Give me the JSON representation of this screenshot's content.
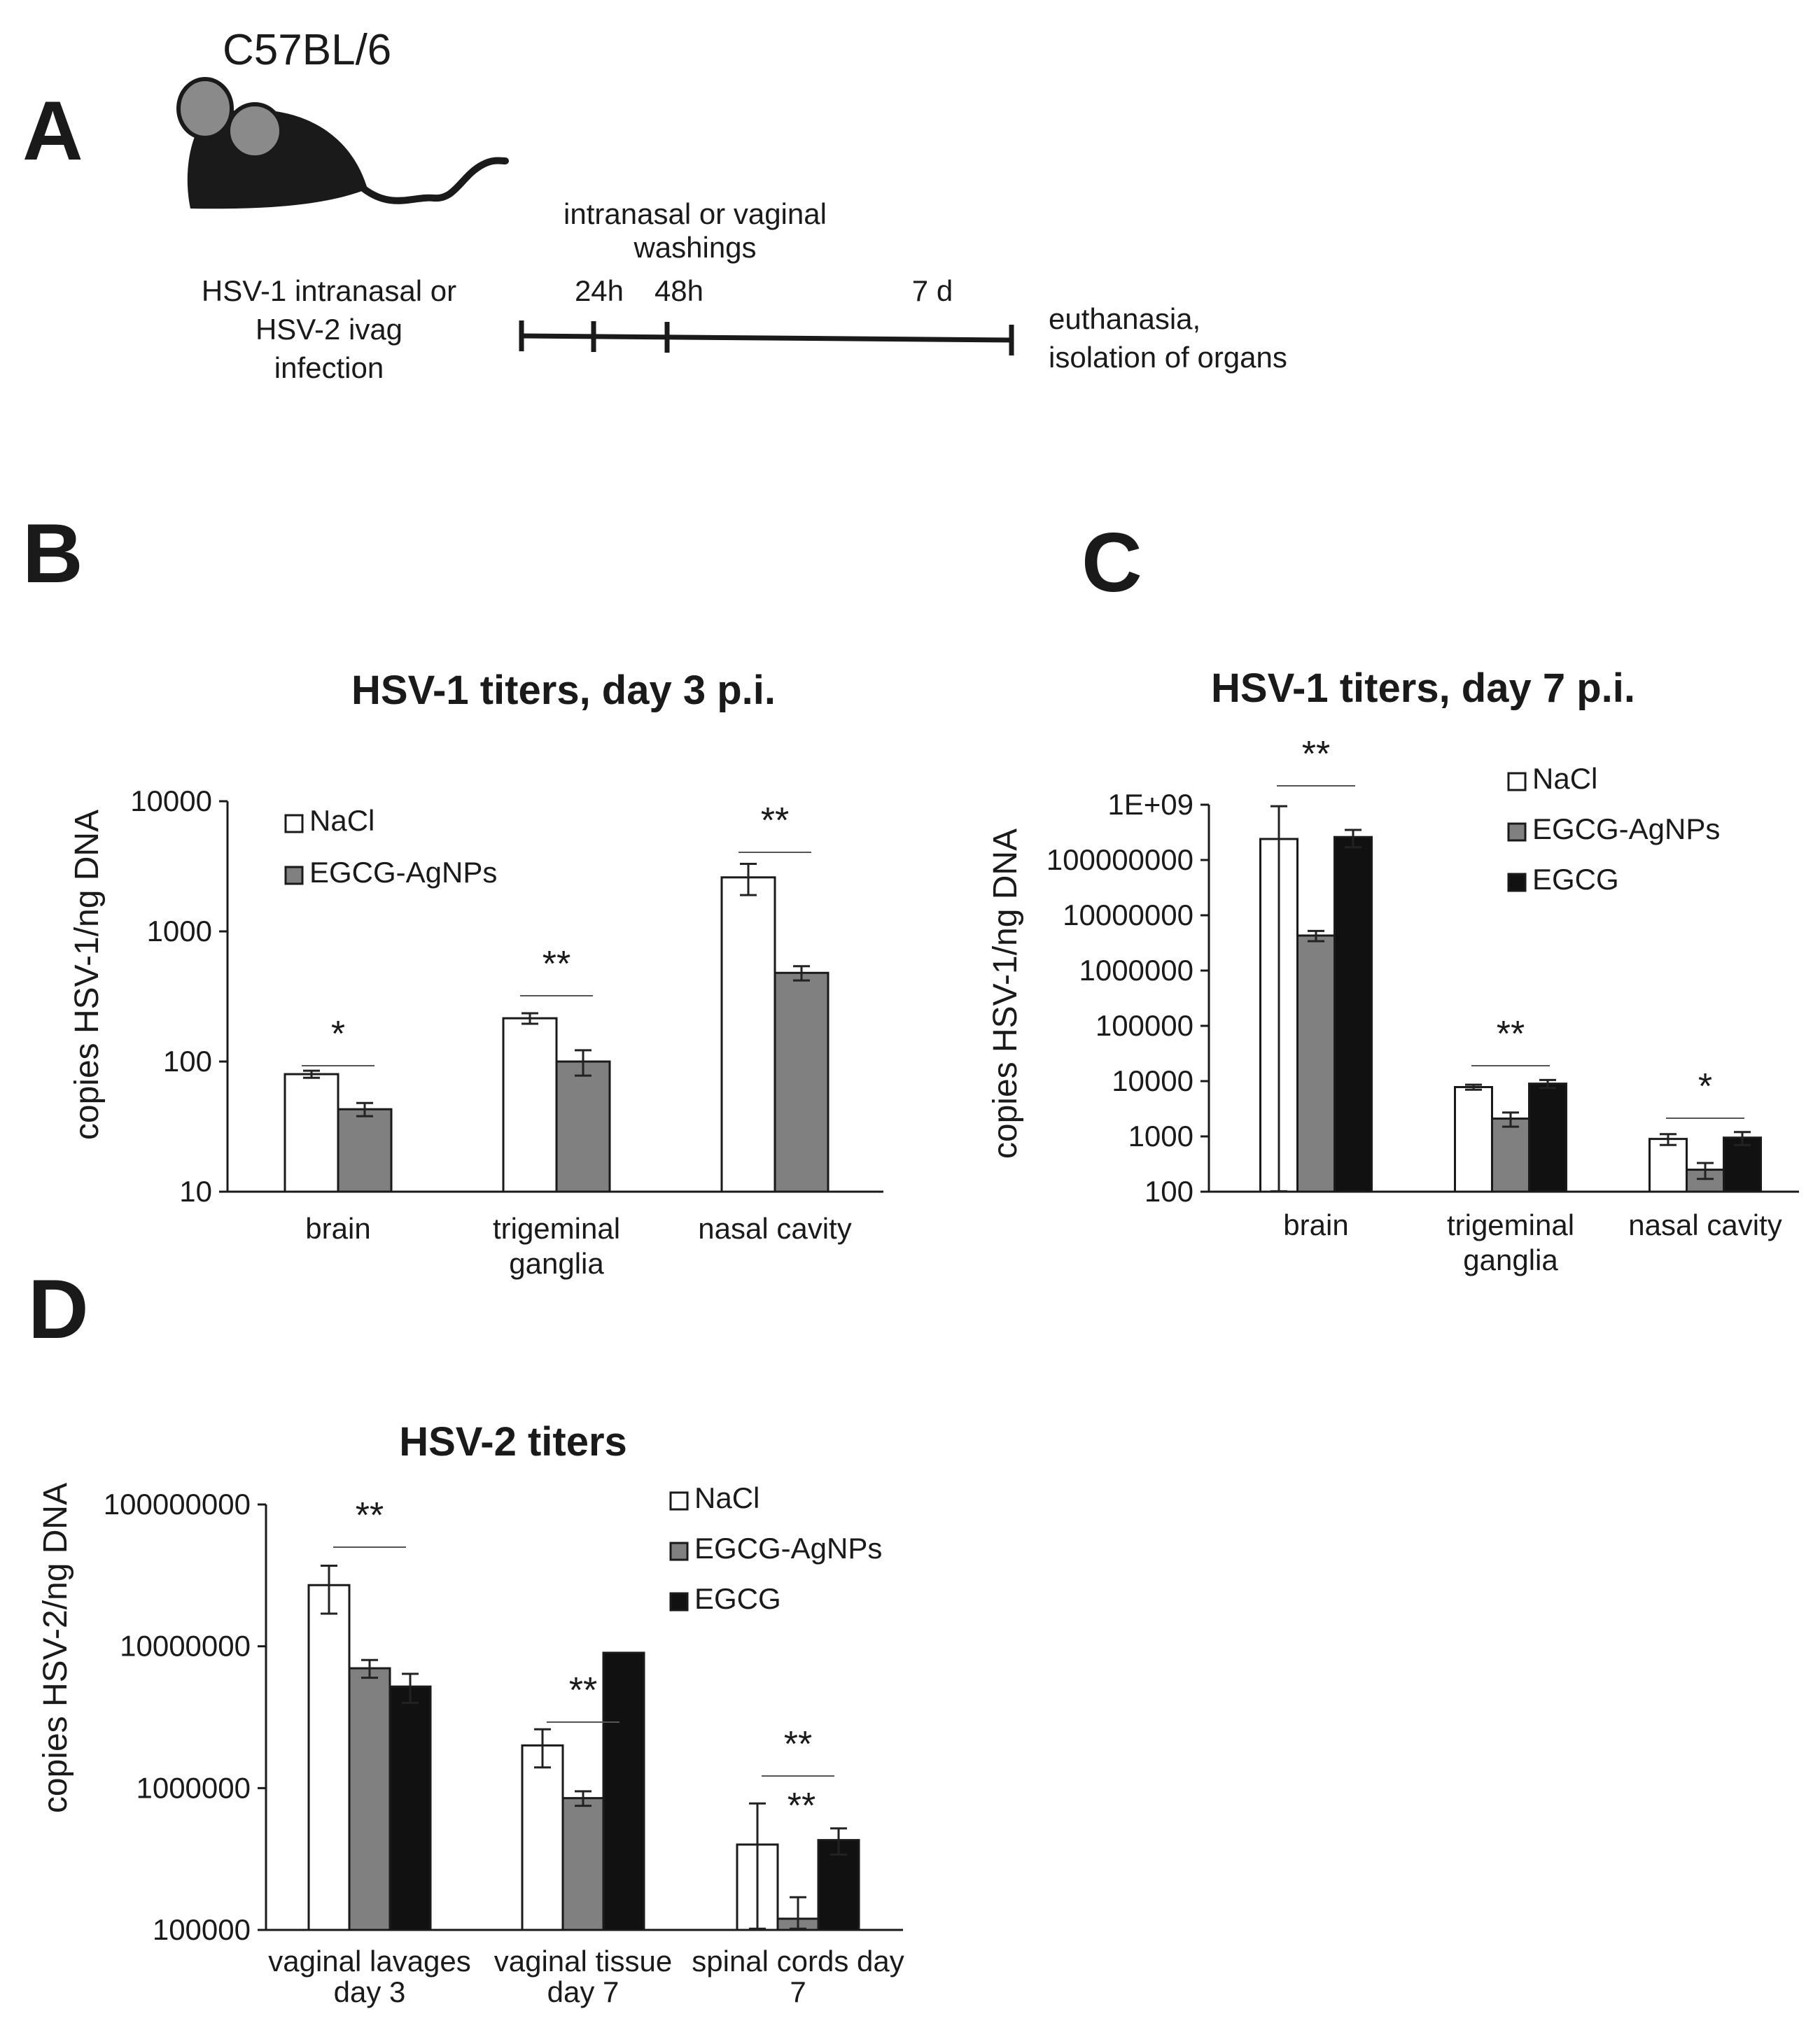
{
  "panel_a": {
    "letter": "A",
    "strain": "C57BL/6",
    "infection_lines": [
      "HSV-1 intranasal or",
      "HSV-2 ivag",
      "infection"
    ],
    "washings_lines": [
      "intranasal or vaginal",
      "washings"
    ],
    "time_labels": [
      "24h",
      "48h",
      "7 d"
    ],
    "end_lines": [
      "euthanasia,",
      "isolation of organs"
    ]
  },
  "panel_letters": {
    "b": "B",
    "c": "C",
    "d": "D"
  },
  "colors": {
    "NaCl": "#ffffff",
    "EGCG-AgNPs": "#808080",
    "EGCG": "#111111",
    "mouse_body": "#1a1a1a",
    "mouse_ear": "#8a8a8a"
  },
  "chart_data": [
    {
      "id": "B",
      "type": "bar",
      "title": "HSV-1 titers, day 3 p.i.",
      "ylabel": "copies HSV-1/ng  DNA",
      "yscale": "log",
      "ylim": [
        10,
        10000
      ],
      "yticks": [
        "10",
        "100",
        "1000",
        "10000"
      ],
      "categories": [
        [
          "brain"
        ],
        [
          "trigeminal",
          "ganglia"
        ],
        [
          "nasal cavity"
        ]
      ],
      "legend": [
        "NaCl",
        "EGCG-AgNPs"
      ],
      "series": [
        {
          "name": "NaCl",
          "values": [
            80,
            215,
            2600
          ],
          "errors": [
            5,
            20,
            700
          ]
        },
        {
          "name": "EGCG-AgNPs",
          "values": [
            43,
            100,
            480
          ],
          "errors": [
            5,
            22,
            60
          ]
        }
      ],
      "significance": [
        "*",
        "**",
        "**"
      ]
    },
    {
      "id": "C",
      "type": "bar",
      "title": "HSV-1 titers, day 7 p.i.",
      "ylabel": "copies HSV-1/ng  DNA",
      "yscale": "log",
      "ylim": [
        100,
        1000000000
      ],
      "yticks": [
        "100",
        "1000",
        "10000",
        "100000",
        "1000000",
        "10000000",
        "100000000",
        "1E+09"
      ],
      "categories": [
        [
          "brain"
        ],
        [
          "trigeminal",
          "ganglia"
        ],
        [
          "nasal cavity"
        ]
      ],
      "legend": [
        "NaCl",
        "EGCG-AgNPs",
        "EGCG"
      ],
      "series": [
        {
          "name": "NaCl",
          "values": [
            240000000,
            7800,
            900
          ],
          "errors": [
            700000000,
            800,
            200
          ]
        },
        {
          "name": "EGCG-AgNPs",
          "values": [
            4300000,
            2100,
            250
          ],
          "errors": [
            900000,
            600,
            80
          ]
        },
        {
          "name": "EGCG",
          "values": [
            260000000,
            9000,
            950
          ],
          "errors": [
            90000000,
            1500,
            250
          ]
        }
      ],
      "significance": [
        "**",
        "**",
        "*"
      ]
    },
    {
      "id": "D",
      "type": "bar",
      "title": "HSV-2 titers",
      "ylabel": "copies HSV-2/ng  DNA",
      "yscale": "log",
      "ylim": [
        100000,
        100000000
      ],
      "yticks": [
        "100000",
        "1000000",
        "10000000",
        "100000000"
      ],
      "categories": [
        [
          "vaginal lavages",
          "day 3"
        ],
        [
          "vaginal tissue",
          "day 7"
        ],
        [
          "spinal cords day",
          "7"
        ]
      ],
      "legend": [
        "NaCl",
        "EGCG-AgNPs",
        "EGCG"
      ],
      "series": [
        {
          "name": "NaCl",
          "values": [
            27000000,
            2000000,
            400000
          ],
          "errors": [
            10000000,
            600000,
            380000
          ]
        },
        {
          "name": "EGCG-AgNPs",
          "values": [
            7000000,
            850000,
            120000
          ],
          "errors": [
            1000000,
            100000,
            50000
          ]
        },
        {
          "name": "EGCG",
          "values": [
            5200000,
            9000000,
            430000
          ],
          "errors": [
            1200000,
            0,
            90000
          ]
        }
      ],
      "significance": [
        "**",
        "**",
        "**"
      ],
      "extra_significance": "**"
    }
  ]
}
